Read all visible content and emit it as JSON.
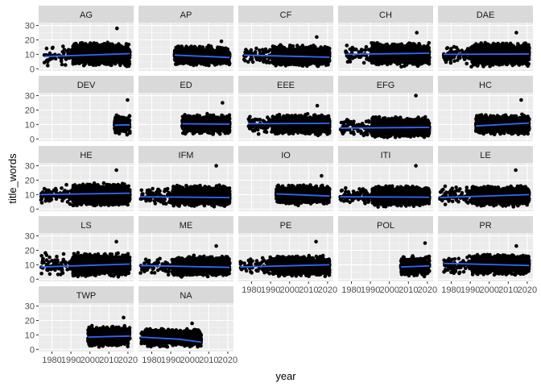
{
  "chart_data": {
    "type": "scatter",
    "facet_layout": "wrap",
    "xlabel": "year",
    "ylabel": "title_words",
    "xlim": [
      1973,
      2023
    ],
    "ylim": [
      -1.5,
      32
    ],
    "x_ticks": [
      1980,
      1990,
      2000,
      2010,
      2020
    ],
    "y_ticks": [
      0,
      10,
      20,
      30
    ],
    "grid": true,
    "point_color": "#000000",
    "trend_color": "#3366FF",
    "panel_bg": "#EBEBEB",
    "strip_bg": "#D9D9D9",
    "facets": [
      {
        "label": "AG",
        "x_range": [
          1976,
          2021
        ],
        "y_center": 10,
        "y_spread": 9,
        "y_max": 28,
        "trend": [
          [
            1976,
            8.5
          ],
          [
            2021,
            10.5
          ]
        ]
      },
      {
        "label": "AP",
        "x_range": [
          1992,
          2021
        ],
        "y_center": 9,
        "y_spread": 8,
        "y_max": 19,
        "trend": [
          [
            1992,
            9.5
          ],
          [
            2021,
            7.8
          ]
        ]
      },
      {
        "label": "CF",
        "x_range": [
          1976,
          2021
        ],
        "y_center": 9,
        "y_spread": 8,
        "y_max": 22,
        "trend": [
          [
            1976,
            9.5
          ],
          [
            2021,
            8.0
          ]
        ]
      },
      {
        "label": "CH",
        "x_range": [
          1977,
          2021
        ],
        "y_center": 10,
        "y_spread": 9,
        "y_max": 25,
        "trend": [
          [
            1977,
            10.0
          ],
          [
            2021,
            10.8
          ]
        ]
      },
      {
        "label": "DAE",
        "x_range": [
          1976,
          2021
        ],
        "y_center": 10,
        "y_spread": 9,
        "y_max": 25,
        "trend": [
          [
            1976,
            10.0
          ],
          [
            2021,
            10.2
          ]
        ]
      },
      {
        "label": "DEV",
        "x_range": [
          2013,
          2021
        ],
        "y_center": 10,
        "y_spread": 8,
        "y_max": 27,
        "trend": [
          [
            2013,
            9.5
          ],
          [
            2021,
            9.8
          ]
        ]
      },
      {
        "label": "ED",
        "x_range": [
          1996,
          2021
        ],
        "y_center": 10,
        "y_spread": 8,
        "y_max": 25,
        "trend": [
          [
            1996,
            10.5
          ],
          [
            2021,
            10.2
          ]
        ]
      },
      {
        "label": "EEE",
        "x_range": [
          1978,
          2021
        ],
        "y_center": 10,
        "y_spread": 8,
        "y_max": 23,
        "trend": [
          [
            1978,
            10.5
          ],
          [
            2021,
            10.8
          ]
        ]
      },
      {
        "label": "EFG",
        "x_range": [
          1974,
          2021
        ],
        "y_center": 8,
        "y_spread": 8,
        "y_max": 30,
        "trend": [
          [
            1974,
            7.5
          ],
          [
            2021,
            8.0
          ]
        ]
      },
      {
        "label": "HC",
        "x_range": [
          1993,
          2021
        ],
        "y_center": 10,
        "y_spread": 8,
        "y_max": 27,
        "trend": [
          [
            1993,
            9.0
          ],
          [
            2021,
            11.0
          ]
        ]
      },
      {
        "label": "HE",
        "x_range": [
          1974,
          2021
        ],
        "y_center": 10,
        "y_spread": 9,
        "y_max": 27,
        "trend": [
          [
            1974,
            10.0
          ],
          [
            2021,
            11.0
          ]
        ]
      },
      {
        "label": "IFM",
        "x_range": [
          1974,
          2021
        ],
        "y_center": 9,
        "y_spread": 8,
        "y_max": 30,
        "trend": [
          [
            1974,
            8.5
          ],
          [
            2021,
            8.0
          ]
        ]
      },
      {
        "label": "IO",
        "x_range": [
          1993,
          2021
        ],
        "y_center": 10,
        "y_spread": 8,
        "y_max": 23,
        "trend": [
          [
            1993,
            10.5
          ],
          [
            2021,
            9.0
          ]
        ]
      },
      {
        "label": "ITI",
        "x_range": [
          1974,
          2021
        ],
        "y_center": 9,
        "y_spread": 8,
        "y_max": 30,
        "trend": [
          [
            1974,
            8.5
          ],
          [
            2021,
            8.2
          ]
        ]
      },
      {
        "label": "LE",
        "x_range": [
          1974,
          2021
        ],
        "y_center": 9,
        "y_spread": 8,
        "y_max": 27,
        "trend": [
          [
            1974,
            8.0
          ],
          [
            2021,
            10.0
          ]
        ]
      },
      {
        "label": "LS",
        "x_range": [
          1974,
          2021
        ],
        "y_center": 10,
        "y_spread": 9,
        "y_max": 26,
        "trend": [
          [
            1974,
            8.5
          ],
          [
            2021,
            10.5
          ]
        ]
      },
      {
        "label": "ME",
        "x_range": [
          1974,
          2021
        ],
        "y_center": 9,
        "y_spread": 8,
        "y_max": 23,
        "trend": [
          [
            1974,
            9.5
          ],
          [
            2021,
            8.2
          ]
        ]
      },
      {
        "label": "PE",
        "x_range": [
          1974,
          2021
        ],
        "y_center": 9,
        "y_spread": 8,
        "y_max": 26,
        "trend": [
          [
            1974,
            8.5
          ],
          [
            2021,
            10.0
          ]
        ]
      },
      {
        "label": "POL",
        "x_range": [
          2006,
          2021
        ],
        "y_center": 9,
        "y_spread": 8,
        "y_max": 25,
        "trend": [
          [
            2006,
            8.5
          ],
          [
            2021,
            9.2
          ]
        ]
      },
      {
        "label": "PR",
        "x_range": [
          1976,
          2021
        ],
        "y_center": 10,
        "y_spread": 8,
        "y_max": 23,
        "trend": [
          [
            1976,
            11.0
          ],
          [
            2021,
            9.5
          ]
        ]
      },
      {
        "label": "TWP",
        "x_range": [
          1999,
          2021
        ],
        "y_center": 9,
        "y_spread": 8,
        "y_max": 22,
        "trend": [
          [
            1999,
            8.5
          ],
          [
            2021,
            9.2
          ]
        ]
      },
      {
        "label": "NA",
        "x_range": [
          1974,
          2006
        ],
        "y_center": 8,
        "y_spread": 7,
        "y_max": 18,
        "trend": [
          [
            1974,
            8.5
          ],
          [
            1995,
            7.0
          ],
          [
            2006,
            5.0
          ]
        ]
      }
    ]
  }
}
